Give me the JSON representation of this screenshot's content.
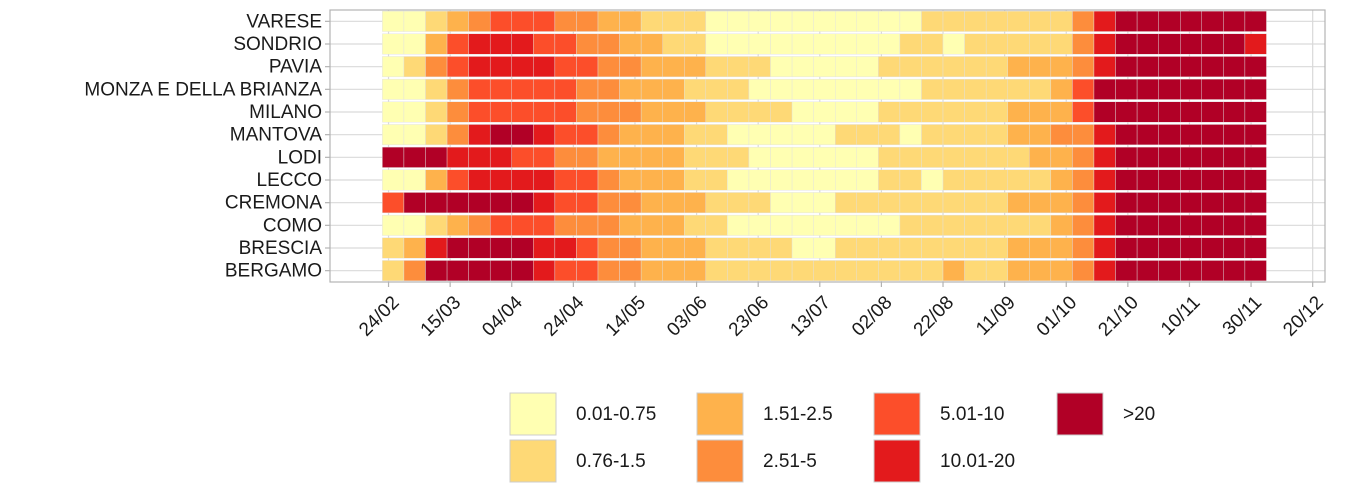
{
  "chart_data": {
    "type": "heatmap",
    "categories": [
      "VARESE",
      "SONDRIO",
      "PAVIA",
      "MONZA E DELLA BRIANZA",
      "MILANO",
      "MANTOVA",
      "LODI",
      "LECCO",
      "CREMONA",
      "COMO",
      "BRESCIA",
      "BERGAMO"
    ],
    "x": [
      "22/02",
      "29/02",
      "07/03",
      "14/03",
      "21/03",
      "28/03",
      "04/04",
      "11/04",
      "18/04",
      "25/04",
      "02/05",
      "09/05",
      "16/05",
      "23/05",
      "30/05",
      "06/06",
      "13/06",
      "20/06",
      "27/06",
      "04/07",
      "11/07",
      "18/07",
      "25/07",
      "01/08",
      "08/08",
      "15/08",
      "22/08",
      "29/08",
      "05/09",
      "12/09",
      "19/09",
      "26/09",
      "03/10",
      "10/10",
      "17/10",
      "24/10",
      "31/10",
      "07/11",
      "14/11",
      "21/11",
      "28/11"
    ],
    "values": [
      [
        0,
        0,
        1,
        2,
        3,
        4,
        4,
        4,
        3,
        3,
        2,
        2,
        1,
        1,
        1,
        0,
        0,
        0,
        0,
        0,
        0,
        0,
        0,
        0,
        0,
        1,
        1,
        1,
        1,
        1,
        1,
        1,
        3,
        5,
        6,
        6,
        6,
        6,
        6,
        6,
        6
      ],
      [
        0,
        0,
        2,
        4,
        5,
        5,
        5,
        4,
        4,
        3,
        3,
        2,
        2,
        1,
        1,
        0,
        0,
        0,
        0,
        0,
        0,
        0,
        0,
        0,
        1,
        1,
        0,
        1,
        1,
        1,
        1,
        1,
        3,
        5,
        6,
        6,
        6,
        6,
        6,
        6,
        5
      ],
      [
        0,
        1,
        3,
        4,
        5,
        5,
        5,
        5,
        4,
        4,
        3,
        3,
        2,
        2,
        2,
        1,
        1,
        1,
        0,
        0,
        0,
        0,
        0,
        1,
        1,
        1,
        1,
        1,
        1,
        2,
        2,
        2,
        3,
        5,
        6,
        6,
        6,
        6,
        6,
        6,
        6
      ],
      [
        0,
        0,
        1,
        3,
        4,
        4,
        4,
        4,
        4,
        3,
        3,
        2,
        2,
        2,
        1,
        1,
        1,
        0,
        0,
        0,
        0,
        0,
        0,
        0,
        0,
        1,
        1,
        1,
        1,
        1,
        1,
        2,
        4,
        6,
        6,
        6,
        6,
        6,
        6,
        6,
        6
      ],
      [
        0,
        0,
        1,
        3,
        4,
        4,
        4,
        4,
        4,
        3,
        3,
        3,
        2,
        2,
        2,
        1,
        1,
        1,
        1,
        0,
        0,
        0,
        0,
        1,
        1,
        1,
        1,
        1,
        1,
        2,
        2,
        2,
        4,
        6,
        6,
        6,
        6,
        6,
        6,
        6,
        6
      ],
      [
        0,
        0,
        1,
        3,
        5,
        6,
        6,
        5,
        4,
        4,
        3,
        2,
        2,
        2,
        1,
        1,
        0,
        0,
        0,
        0,
        0,
        1,
        1,
        1,
        0,
        1,
        1,
        1,
        1,
        2,
        2,
        3,
        3,
        5,
        6,
        6,
        6,
        6,
        6,
        6,
        6
      ],
      [
        6,
        6,
        6,
        5,
        5,
        5,
        4,
        4,
        3,
        3,
        2,
        2,
        2,
        2,
        1,
        1,
        1,
        0,
        0,
        0,
        0,
        0,
        0,
        1,
        1,
        1,
        1,
        1,
        1,
        1,
        2,
        2,
        3,
        5,
        6,
        6,
        6,
        6,
        6,
        6,
        6
      ],
      [
        0,
        0,
        2,
        4,
        5,
        5,
        5,
        5,
        4,
        4,
        3,
        2,
        2,
        2,
        1,
        1,
        0,
        0,
        0,
        0,
        0,
        0,
        0,
        1,
        1,
        0,
        1,
        1,
        1,
        1,
        1,
        2,
        3,
        5,
        6,
        6,
        6,
        6,
        6,
        6,
        6
      ],
      [
        4,
        6,
        6,
        6,
        6,
        6,
        6,
        5,
        4,
        4,
        3,
        3,
        2,
        2,
        2,
        1,
        1,
        1,
        0,
        0,
        0,
        1,
        1,
        1,
        1,
        1,
        1,
        1,
        1,
        2,
        2,
        2,
        3,
        5,
        6,
        6,
        6,
        6,
        6,
        6,
        6
      ],
      [
        0,
        0,
        1,
        2,
        3,
        4,
        4,
        4,
        3,
        3,
        3,
        2,
        2,
        2,
        1,
        1,
        0,
        0,
        0,
        0,
        0,
        0,
        0,
        0,
        1,
        1,
        1,
        1,
        1,
        1,
        1,
        2,
        3,
        5,
        6,
        6,
        6,
        6,
        6,
        6,
        6
      ],
      [
        1,
        2,
        5,
        6,
        6,
        6,
        6,
        5,
        5,
        4,
        3,
        3,
        2,
        2,
        2,
        1,
        1,
        1,
        1,
        0,
        0,
        1,
        1,
        1,
        1,
        1,
        1,
        1,
        1,
        2,
        2,
        2,
        3,
        5,
        6,
        6,
        6,
        6,
        6,
        6,
        6
      ],
      [
        1,
        3,
        6,
        6,
        6,
        6,
        6,
        5,
        4,
        4,
        3,
        3,
        2,
        2,
        2,
        1,
        1,
        1,
        1,
        1,
        1,
        1,
        1,
        1,
        1,
        1,
        2,
        1,
        1,
        2,
        2,
        2,
        3,
        5,
        6,
        6,
        6,
        6,
        6,
        6,
        6
      ]
    ],
    "levels": [
      {
        "label": "0.01-0.75",
        "color": "#ffffb2"
      },
      {
        "label": "0.76-1.5",
        "color": "#fed976"
      },
      {
        "label": "1.51-2.5",
        "color": "#feb24c"
      },
      {
        "label": "2.51-5",
        "color": "#fd8d3c"
      },
      {
        "label": "5.01-10",
        "color": "#fc4e2a"
      },
      {
        "label": "10.01-20",
        "color": "#e31a1c"
      },
      {
        "label": ">20",
        "color": "#b10026"
      }
    ],
    "xlim": [
      "05/02",
      "24/12"
    ],
    "xticks": [
      "24/02",
      "15/03",
      "04/04",
      "24/04",
      "14/05",
      "03/06",
      "23/06",
      "13/07",
      "02/08",
      "22/08",
      "11/09",
      "01/10",
      "21/10",
      "10/11",
      "30/11",
      "20/12"
    ],
    "grid": true,
    "legend": "bottom"
  }
}
